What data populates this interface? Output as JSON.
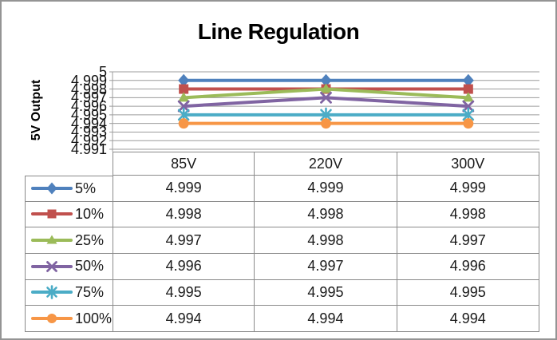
{
  "chart_data": {
    "type": "line",
    "title": "Line Regulation",
    "ylabel": "5V Output",
    "xlabel": "",
    "categories": [
      "85V",
      "220V",
      "300V"
    ],
    "series": [
      {
        "name": "5%",
        "color": "#4F81BD",
        "marker": "diamond",
        "values": [
          4.999,
          4.999,
          4.999
        ]
      },
      {
        "name": "10%",
        "color": "#C0504D",
        "marker": "square",
        "values": [
          4.998,
          4.998,
          4.998
        ]
      },
      {
        "name": "25%",
        "color": "#9BBB59",
        "marker": "triangle",
        "values": [
          4.997,
          4.998,
          4.997
        ]
      },
      {
        "name": "50%",
        "color": "#8064A2",
        "marker": "x",
        "values": [
          4.996,
          4.997,
          4.996
        ]
      },
      {
        "name": "75%",
        "color": "#4BACC6",
        "marker": "asterisk",
        "values": [
          4.995,
          4.995,
          4.995
        ]
      },
      {
        "name": "100%",
        "color": "#F79646",
        "marker": "circle",
        "values": [
          4.994,
          4.994,
          4.994
        ]
      }
    ],
    "ylim": [
      4.991,
      5.0
    ],
    "ytick_step": 0.001,
    "yticks": [
      "5",
      "4.999",
      "4.998",
      "4.997",
      "4.996",
      "4.995",
      "4.994",
      "4.993",
      "4.992",
      "4.991"
    ],
    "grid": true,
    "legend_position": "data-table-left",
    "data_table_shown": true,
    "gridline_color": "#9c9c9c",
    "table_border_color": "#8a8a8a"
  }
}
